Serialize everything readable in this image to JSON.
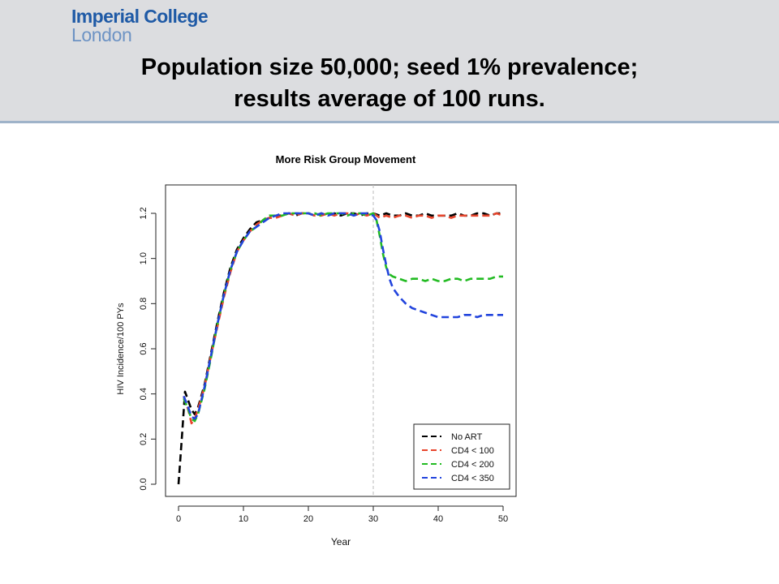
{
  "header": {
    "logo_line1": "Imperial College",
    "logo_line2": "London",
    "title_line1": "Population size 50,000; seed 1% prevalence;",
    "title_line2": "results average of 100 runs."
  },
  "chart_data": {
    "type": "line",
    "title": "More Risk Group Movement",
    "xlabel": "Year",
    "ylabel": "HIV Incidence/100 PYs",
    "xlim": [
      0,
      50
    ],
    "ylim": [
      0,
      1.25
    ],
    "xticks": [
      0,
      10,
      20,
      30,
      40,
      50
    ],
    "yticks": [
      0.0,
      0.2,
      0.4,
      0.6,
      0.8,
      1.0,
      1.2
    ],
    "xtick_labels": [
      "0",
      "10",
      "20",
      "30",
      "40",
      "50"
    ],
    "ytick_labels": [
      "0.0",
      "0.2",
      "0.4",
      "0.6",
      "0.8",
      "1.0",
      "1.2"
    ],
    "vline": {
      "x": 30,
      "color": "#bbbbbb",
      "style": "dashed"
    },
    "legend_position": "bottom-right",
    "grid": false,
    "series": [
      {
        "name": "No ART",
        "color": "#000000",
        "x": [
          0,
          0.5,
          1,
          1.5,
          2,
          2.5,
          3,
          4,
          5,
          6,
          7,
          8,
          9,
          10,
          11,
          12,
          13,
          14,
          15,
          16,
          17,
          18,
          19,
          20,
          21,
          22,
          23,
          24,
          25,
          26,
          27,
          28,
          29,
          30,
          31,
          32,
          33,
          34,
          35,
          36,
          37,
          38,
          39,
          40,
          41,
          42,
          43,
          44,
          45,
          46,
          47,
          48,
          49,
          50
        ],
        "y": [
          0.0,
          0.2,
          0.41,
          0.37,
          0.33,
          0.31,
          0.34,
          0.44,
          0.58,
          0.72,
          0.85,
          0.96,
          1.04,
          1.09,
          1.13,
          1.16,
          1.17,
          1.18,
          1.19,
          1.19,
          1.2,
          1.19,
          1.2,
          1.2,
          1.19,
          1.2,
          1.19,
          1.2,
          1.19,
          1.2,
          1.2,
          1.19,
          1.2,
          1.2,
          1.19,
          1.2,
          1.19,
          1.19,
          1.2,
          1.19,
          1.19,
          1.2,
          1.19,
          1.19,
          1.19,
          1.19,
          1.2,
          1.19,
          1.19,
          1.2,
          1.2,
          1.19,
          1.2,
          1.2
        ]
      },
      {
        "name": "CD4 < 100",
        "color": "#e8452c",
        "x": [
          0.8,
          1.5,
          2,
          2.5,
          3,
          4,
          5,
          6,
          7,
          8,
          9,
          10,
          11,
          12,
          13,
          14,
          15,
          16,
          17,
          18,
          19,
          20,
          21,
          22,
          23,
          24,
          25,
          26,
          27,
          28,
          29,
          30,
          31,
          32,
          33,
          34,
          35,
          36,
          37,
          38,
          39,
          40,
          41,
          42,
          43,
          44,
          45,
          46,
          47,
          48,
          49,
          50
        ],
        "y": [
          0.39,
          0.33,
          0.27,
          0.29,
          0.33,
          0.43,
          0.57,
          0.7,
          0.83,
          0.94,
          1.03,
          1.08,
          1.12,
          1.15,
          1.17,
          1.18,
          1.18,
          1.19,
          1.2,
          1.19,
          1.2,
          1.2,
          1.19,
          1.19,
          1.2,
          1.19,
          1.2,
          1.2,
          1.19,
          1.2,
          1.19,
          1.2,
          1.18,
          1.19,
          1.18,
          1.19,
          1.19,
          1.18,
          1.19,
          1.19,
          1.18,
          1.19,
          1.19,
          1.18,
          1.19,
          1.19,
          1.19,
          1.19,
          1.19,
          1.19,
          1.2,
          1.19
        ]
      },
      {
        "name": "CD4 < 200",
        "color": "#22bb22",
        "x": [
          0.8,
          1.5,
          2,
          2.5,
          3,
          4,
          5,
          6,
          7,
          8,
          9,
          10,
          11,
          12,
          13,
          14,
          15,
          16,
          17,
          18,
          19,
          20,
          21,
          22,
          23,
          24,
          25,
          26,
          27,
          28,
          29,
          30,
          30.5,
          31,
          31.5,
          32,
          32.5,
          33,
          34,
          35,
          36,
          37,
          38,
          39,
          40,
          41,
          42,
          43,
          44,
          45,
          46,
          47,
          48,
          49,
          50
        ],
        "y": [
          0.38,
          0.33,
          0.29,
          0.28,
          0.31,
          0.42,
          0.56,
          0.71,
          0.84,
          0.95,
          1.03,
          1.08,
          1.12,
          1.14,
          1.17,
          1.19,
          1.19,
          1.19,
          1.2,
          1.2,
          1.2,
          1.2,
          1.2,
          1.19,
          1.2,
          1.2,
          1.2,
          1.19,
          1.2,
          1.2,
          1.19,
          1.2,
          1.17,
          1.1,
          1.02,
          0.96,
          0.93,
          0.92,
          0.91,
          0.9,
          0.91,
          0.91,
          0.9,
          0.91,
          0.9,
          0.9,
          0.91,
          0.91,
          0.9,
          0.91,
          0.91,
          0.91,
          0.91,
          0.92,
          0.92
        ]
      },
      {
        "name": "CD4 < 350",
        "color": "#2244dd",
        "x": [
          0.8,
          1.5,
          2,
          2.5,
          3,
          4,
          5,
          6,
          7,
          8,
          9,
          10,
          11,
          12,
          13,
          14,
          15,
          16,
          17,
          18,
          19,
          20,
          21,
          22,
          23,
          24,
          25,
          26,
          27,
          28,
          29,
          30,
          30.5,
          31,
          31.5,
          32,
          32.5,
          33,
          34,
          35,
          36,
          37,
          38,
          39,
          40,
          41,
          42,
          43,
          44,
          45,
          46,
          47,
          48,
          49,
          50
        ],
        "y": [
          0.39,
          0.34,
          0.3,
          0.29,
          0.31,
          0.43,
          0.57,
          0.71,
          0.84,
          0.95,
          1.03,
          1.08,
          1.12,
          1.14,
          1.16,
          1.18,
          1.19,
          1.2,
          1.2,
          1.2,
          1.2,
          1.2,
          1.19,
          1.2,
          1.19,
          1.2,
          1.2,
          1.2,
          1.19,
          1.2,
          1.2,
          1.19,
          1.17,
          1.12,
          1.04,
          0.97,
          0.91,
          0.87,
          0.83,
          0.8,
          0.78,
          0.77,
          0.76,
          0.75,
          0.74,
          0.74,
          0.74,
          0.74,
          0.75,
          0.75,
          0.74,
          0.75,
          0.75,
          0.75,
          0.75
        ]
      }
    ]
  }
}
